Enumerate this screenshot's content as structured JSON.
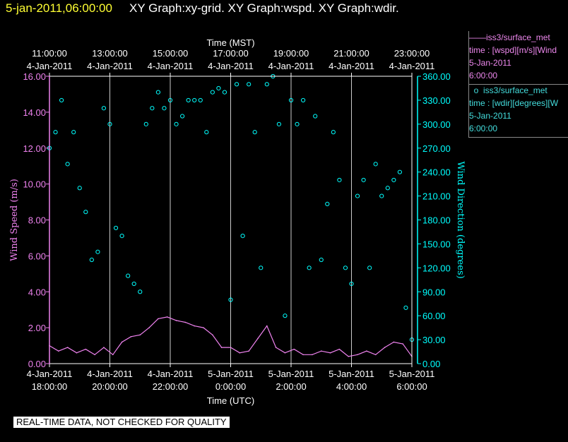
{
  "header": {
    "timestamp": "5-jan-2011,06:00:00",
    "title": "XY Graph:xy-grid.  XY Graph:wspd.  XY Graph:wdir."
  },
  "legend": {
    "wspd": {
      "name": "iss3/surface_met",
      "line1": "time : [wspd][m/s][Wind",
      "date": "5-Jan-2011",
      "time": "6:00:00"
    },
    "wdir": {
      "name": "iss3/surface_met",
      "line1": "time : [wdir][degrees][W",
      "date": "5-Jan-2011",
      "time": "6:00:00"
    }
  },
  "status_note": "REAL-TIME DATA, NOT CHECKED FOR QUALITY",
  "chart_data": {
    "type": "line",
    "grid": "vertical",
    "colors": {
      "wspd": "#ee82ee",
      "wdir": "#00ffff",
      "grid": "#ffffff",
      "axis_left": "#ee82ee",
      "axis_right": "#00ffff"
    },
    "xlabel_bottom": "Time (UTC)",
    "xlabel_top": "Time (MST)",
    "ylabel_left": "Wind Speed (m/s)",
    "ylabel_right": "Wind Direction (degrees)",
    "xlim_utc_hours": [
      18,
      30
    ],
    "y_left_lim": [
      0,
      16
    ],
    "y_right_lim": [
      0,
      360
    ],
    "x_ticks_bottom": [
      {
        "x": 18,
        "date": "4-Jan-2011",
        "time": "18:00:00"
      },
      {
        "x": 20,
        "date": "4-Jan-2011",
        "time": "20:00:00"
      },
      {
        "x": 22,
        "date": "4-Jan-2011",
        "time": "22:00:00"
      },
      {
        "x": 24,
        "date": "5-Jan-2011",
        "time": "0:00:00"
      },
      {
        "x": 26,
        "date": "5-Jan-2011",
        "time": "2:00:00"
      },
      {
        "x": 28,
        "date": "5-Jan-2011",
        "time": "4:00:00"
      },
      {
        "x": 30,
        "date": "5-Jan-2011",
        "time": "6:00:00"
      }
    ],
    "x_ticks_top": [
      {
        "x": 18,
        "time": "11:00:00",
        "date": "4-Jan-2011"
      },
      {
        "x": 20,
        "time": "13:00:00",
        "date": "4-Jan-2011"
      },
      {
        "x": 22,
        "time": "15:00:00",
        "date": "4-Jan-2011"
      },
      {
        "x": 24,
        "time": "17:00:00",
        "date": "4-Jan-2011"
      },
      {
        "x": 26,
        "time": "19:00:00",
        "date": "4-Jan-2011"
      },
      {
        "x": 28,
        "time": "21:00:00",
        "date": "4-Jan-2011"
      },
      {
        "x": 30,
        "time": "23:00:00",
        "date": "4-Jan-2011"
      }
    ],
    "y_left_ticks": [
      "0.00",
      "2.00",
      "4.00",
      "6.00",
      "8.00",
      "10.00",
      "12.00",
      "14.00",
      "16.00"
    ],
    "y_right_ticks": [
      "0.00",
      "30.00",
      "60.00",
      "90.00",
      "120.00",
      "150.00",
      "180.00",
      "210.00",
      "240.00",
      "270.00",
      "300.00",
      "330.00",
      "360.00"
    ],
    "series": [
      {
        "name": "iss3/surface_met",
        "variable": "wspd",
        "style": "line",
        "x": [
          18.0,
          18.3,
          18.6,
          18.9,
          19.2,
          19.5,
          19.8,
          20.1,
          20.4,
          20.7,
          21.0,
          21.3,
          21.6,
          21.9,
          22.2,
          22.5,
          22.8,
          23.1,
          23.4,
          23.7,
          24.0,
          24.3,
          24.6,
          24.9,
          25.2,
          25.5,
          25.8,
          26.1,
          26.4,
          26.7,
          27.0,
          27.3,
          27.6,
          27.9,
          28.2,
          28.5,
          28.8,
          29.1,
          29.4,
          29.7,
          30.0
        ],
        "values": [
          1.0,
          0.7,
          0.9,
          0.6,
          0.8,
          0.5,
          0.9,
          0.5,
          1.2,
          1.5,
          1.6,
          2.0,
          2.5,
          2.6,
          2.4,
          2.3,
          2.1,
          2.0,
          1.6,
          0.9,
          0.9,
          0.6,
          0.7,
          1.4,
          2.1,
          0.9,
          0.6,
          0.8,
          0.5,
          0.5,
          0.7,
          0.6,
          0.8,
          0.4,
          0.5,
          0.7,
          0.5,
          0.9,
          1.2,
          1.1,
          0.4
        ]
      },
      {
        "name": "iss3/surface_met",
        "variable": "wdir",
        "style": "points",
        "x": [
          18.0,
          18.2,
          18.4,
          18.6,
          18.8,
          19.0,
          19.2,
          19.4,
          19.6,
          19.8,
          20.0,
          20.2,
          20.4,
          20.6,
          20.8,
          21.0,
          21.2,
          21.4,
          21.6,
          21.8,
          22.0,
          22.2,
          22.4,
          22.6,
          22.8,
          23.0,
          23.2,
          23.4,
          23.6,
          23.8,
          24.0,
          24.2,
          24.4,
          24.6,
          24.8,
          25.0,
          25.2,
          25.4,
          25.6,
          25.8,
          26.0,
          26.2,
          26.4,
          26.6,
          26.8,
          27.0,
          27.2,
          27.4,
          27.6,
          27.8,
          28.0,
          28.2,
          28.4,
          28.6,
          28.8,
          29.0,
          29.2,
          29.4,
          29.6,
          29.8,
          30.0
        ],
        "values": [
          270,
          290,
          330,
          250,
          290,
          220,
          190,
          130,
          140,
          320,
          300,
          170,
          160,
          110,
          100,
          90,
          300,
          320,
          340,
          320,
          330,
          300,
          310,
          330,
          330,
          330,
          290,
          340,
          345,
          340,
          80,
          350,
          160,
          350,
          290,
          120,
          350,
          360,
          300,
          60,
          330,
          300,
          330,
          120,
          310,
          130,
          200,
          290,
          230,
          120,
          100,
          210,
          230,
          120,
          250,
          210,
          220,
          230,
          240,
          70,
          30
        ]
      }
    ]
  }
}
